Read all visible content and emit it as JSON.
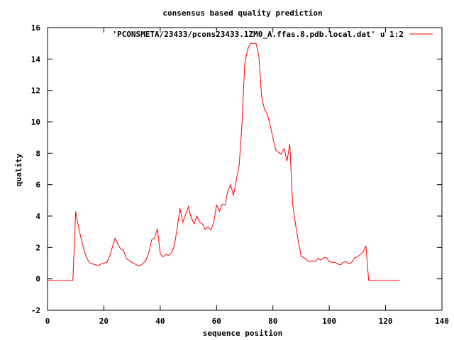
{
  "chart_data": {
    "type": "line",
    "title": "consensus based quality prediction",
    "xlabel": "sequence position",
    "ylabel": "quality",
    "xlim": [
      0,
      140
    ],
    "ylim": [
      -2,
      16
    ],
    "x_ticks": [
      0,
      20,
      40,
      60,
      80,
      100,
      120,
      140
    ],
    "y_ticks": [
      -2,
      0,
      2,
      4,
      6,
      8,
      10,
      12,
      14,
      16
    ],
    "grid": false,
    "legend_position": "top-right",
    "series": [
      {
        "name": "'PCONSMETA/23433/pcons23433.1ZM0_A.ffas.8.pdb.local.dat' u 1:2",
        "color": "#ff0000",
        "x": [
          0,
          1,
          2,
          3,
          4,
          5,
          6,
          7,
          8,
          9,
          10,
          11,
          12,
          13,
          14,
          15,
          16,
          17,
          18,
          19,
          20,
          21,
          22,
          23,
          24,
          25,
          26,
          27,
          28,
          29,
          30,
          31,
          32,
          33,
          34,
          35,
          36,
          37,
          38,
          39,
          40,
          41,
          42,
          43,
          44,
          45,
          46,
          47,
          48,
          49,
          50,
          51,
          52,
          53,
          54,
          55,
          56,
          57,
          58,
          59,
          60,
          61,
          62,
          63,
          64,
          65,
          66,
          67,
          68,
          69,
          70,
          71,
          72,
          73,
          74,
          75,
          76,
          77,
          78,
          79,
          80,
          81,
          82,
          83,
          84,
          85,
          86,
          87,
          88,
          89,
          90,
          91,
          92,
          93,
          94,
          95,
          96,
          97,
          98,
          99,
          100,
          101,
          102,
          103,
          104,
          105,
          106,
          107,
          108,
          109,
          110,
          111,
          112,
          113,
          114,
          115,
          116,
          117,
          118,
          119,
          120,
          121,
          122,
          123,
          124,
          125
        ],
        "y": [
          -0.1,
          -0.1,
          -0.1,
          -0.1,
          -0.1,
          -0.1,
          -0.1,
          -0.1,
          -0.1,
          -0.1,
          4.3,
          3.3,
          2.5,
          1.8,
          1.3,
          1.0,
          0.95,
          0.9,
          0.85,
          0.95,
          1.0,
          1.05,
          1.4,
          2.0,
          2.6,
          2.2,
          1.9,
          1.8,
          1.3,
          1.15,
          1.05,
          0.95,
          0.85,
          0.85,
          1.0,
          1.2,
          1.7,
          2.5,
          2.6,
          3.2,
          1.6,
          1.4,
          1.55,
          1.5,
          1.65,
          2.1,
          3.2,
          4.5,
          3.6,
          4.1,
          4.6,
          3.9,
          3.5,
          4.0,
          3.6,
          3.5,
          3.15,
          3.3,
          3.1,
          3.6,
          4.7,
          4.3,
          4.75,
          4.7,
          5.6,
          6.0,
          5.3,
          6.3,
          7.2,
          9.8,
          13.7,
          14.6,
          15.0,
          15.0,
          15.0,
          14.2,
          11.6,
          10.8,
          10.5,
          9.8,
          9.0,
          8.2,
          8.05,
          7.95,
          8.3,
          7.5,
          8.6,
          4.8,
          3.5,
          2.4,
          1.45,
          1.35,
          1.2,
          1.1,
          1.15,
          1.1,
          1.3,
          1.2,
          1.35,
          1.35,
          1.1,
          1.05,
          1.05,
          0.95,
          0.9,
          1.05,
          1.1,
          0.95,
          1.05,
          1.35,
          1.4,
          1.55,
          1.7,
          2.1,
          -0.1,
          -0.1,
          -0.1,
          -0.1,
          -0.1,
          -0.1,
          -0.1,
          -0.1,
          -0.1,
          -0.1,
          -0.1,
          -0.1
        ]
      }
    ]
  }
}
